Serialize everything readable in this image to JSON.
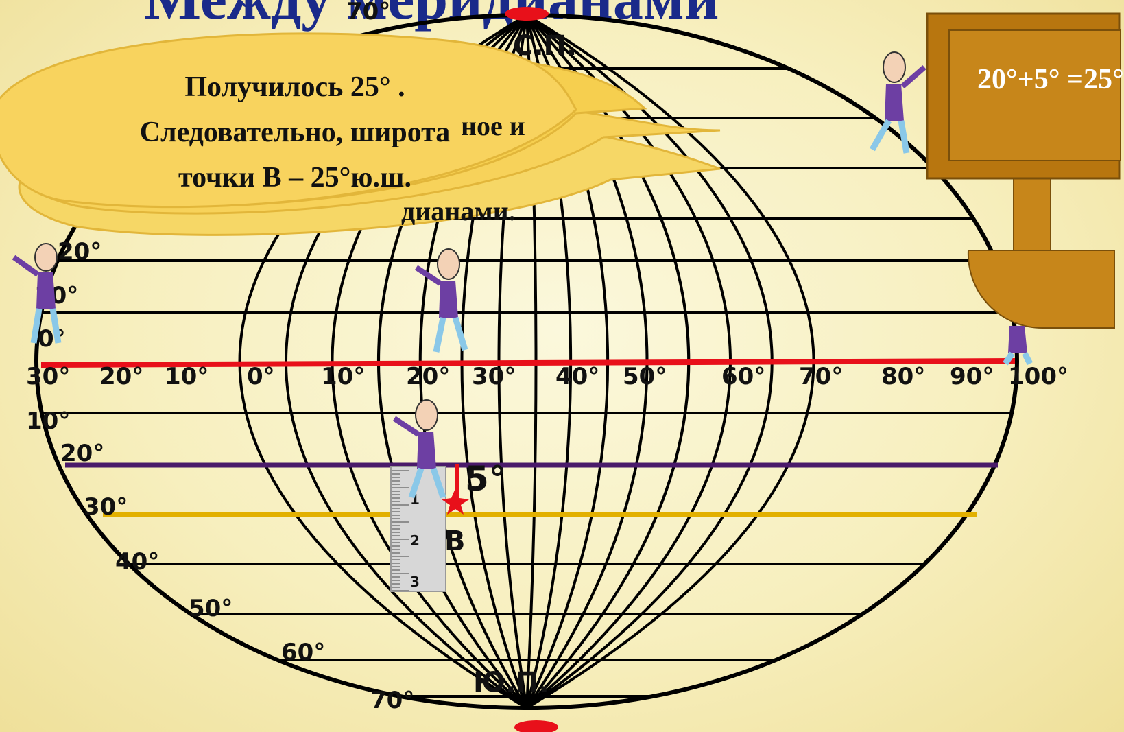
{
  "title": "Между меридианами",
  "poles": {
    "north": "С.П.",
    "south": "Ю.П."
  },
  "callout": {
    "text_line1": "Получилось 25° .",
    "text_line2": "Следовательно, широта",
    "text_line3": "точки В – 25°ю.ш.",
    "hidden_fragment_1": "ное и",
    "hidden_fragment_2": "дианами."
  },
  "board": {
    "text": "20°+5° =25°"
  },
  "point": {
    "label": "В",
    "measurement": "5°"
  },
  "ruler_marks": [
    "1",
    "2",
    "3"
  ],
  "colors": {
    "equator": "#e8101a",
    "parallel_20": "#4a1a6a",
    "parallel_30": "#e2b000",
    "grid": "#000000",
    "bubble": "#f6cf4f",
    "board": "#c7861a",
    "title": "#1a2a8a"
  }
}
